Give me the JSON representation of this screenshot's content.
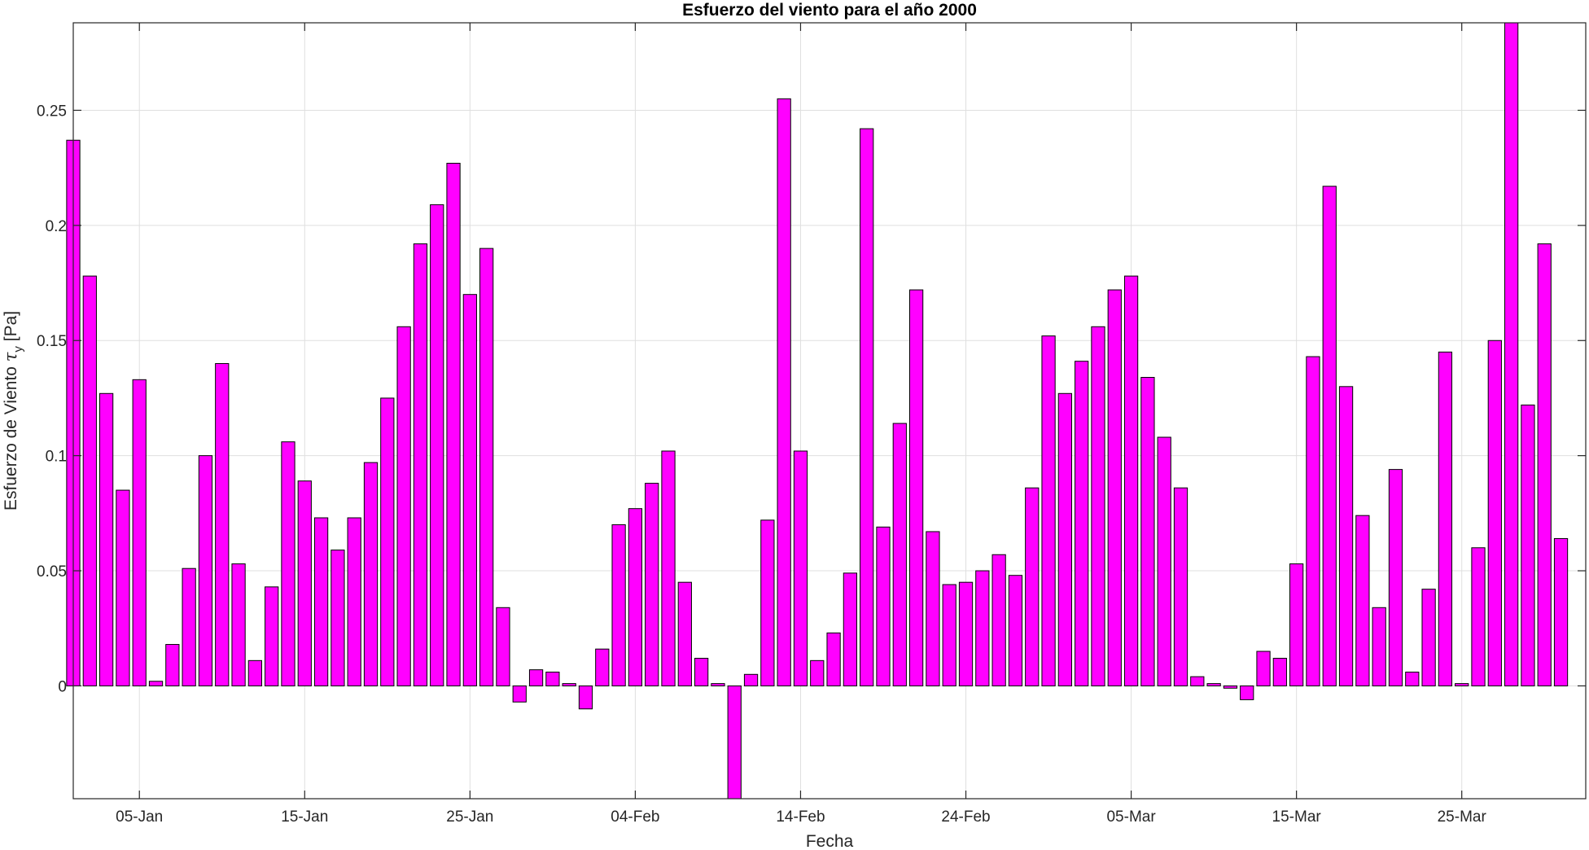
{
  "chart_data": {
    "type": "bar",
    "title": "Esfuerzo del viento para el año 2000",
    "xlabel": "Fecha",
    "ylabel": {
      "main": "Esfuerzo de Viento ",
      "symbol": "τ",
      "subscript": "y",
      "unit": " [Pa]"
    },
    "ylim": [
      -0.049,
      0.288
    ],
    "yticks": [
      0,
      0.05,
      0.1,
      0.15,
      0.2,
      0.25
    ],
    "ytick_labels": [
      "0",
      "0.05",
      "0.1",
      "0.15",
      "0.2",
      "0.25"
    ],
    "x_start_date": "2000-01-01",
    "xlim_days": [
      1,
      92.5
    ],
    "xticks_days": [
      5,
      15,
      25,
      35,
      45,
      55,
      65,
      75,
      85
    ],
    "xtick_labels": [
      "05-Jan",
      "15-Jan",
      "25-Jan",
      "04-Feb",
      "14-Feb",
      "24-Feb",
      "05-Mar",
      "15-Mar",
      "25-Mar"
    ],
    "grid": true,
    "bar_color": "#ff00ff",
    "bar_edge_color": "#000000",
    "values": [
      0.237,
      0.178,
      0.127,
      0.085,
      0.133,
      0.002,
      0.018,
      0.051,
      0.1,
      0.14,
      0.053,
      0.011,
      0.043,
      0.106,
      0.089,
      0.073,
      0.059,
      0.073,
      0.097,
      0.125,
      0.156,
      0.192,
      0.209,
      0.227,
      0.17,
      0.19,
      0.034,
      -0.007,
      0.007,
      0.006,
      0.001,
      -0.01,
      0.016,
      0.07,
      0.077,
      0.088,
      0.102,
      0.045,
      0.012,
      0.001,
      -0.049,
      0.005,
      0.072,
      0.255,
      0.102,
      0.011,
      0.023,
      0.049,
      0.242,
      0.069,
      0.114,
      0.172,
      0.067,
      0.044,
      0.045,
      0.05,
      0.057,
      0.048,
      0.086,
      0.152,
      0.127,
      0.141,
      0.156,
      0.172,
      0.178,
      0.134,
      0.108,
      0.086,
      0.004,
      0.001,
      -0.001,
      -0.006,
      0.015,
      0.012,
      0.053,
      0.143,
      0.217,
      0.13,
      0.074,
      0.034,
      0.094,
      0.006,
      0.042,
      0.145,
      0.001,
      0.06,
      0.15,
      0.288,
      0.122,
      0.192,
      0.064
    ]
  }
}
